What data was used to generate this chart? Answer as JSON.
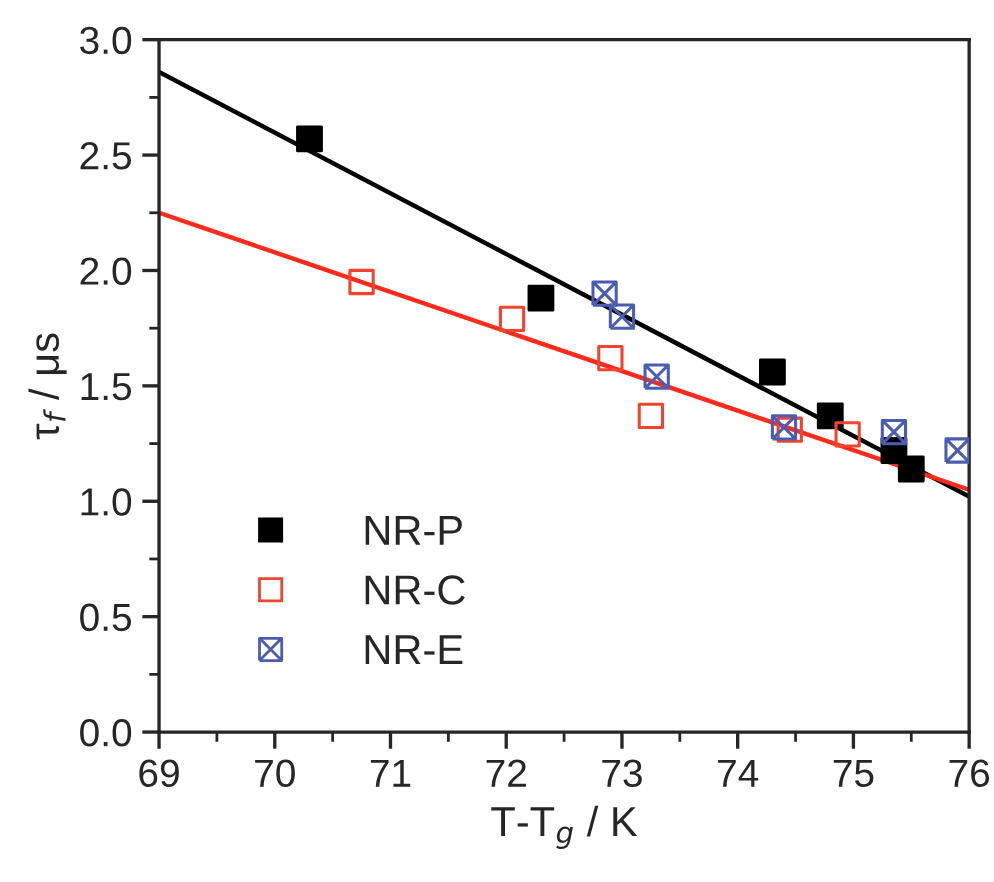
{
  "chart_data": {
    "type": "scatter",
    "xlabel": "T-T$_{g}$ / K",
    "ylabel": "τ$_{f}$ / μs",
    "xlim": [
      69,
      76
    ],
    "xticks": [
      69,
      70,
      71,
      72,
      73,
      74,
      75,
      76
    ],
    "ylim": [
      0,
      3.0
    ],
    "yticks": [
      {
        "value": 0,
        "label": "0.0"
      },
      0.5,
      {
        "value": 1,
        "label": "1.0"
      },
      1.5,
      {
        "value": 2,
        "label": "2.0"
      },
      2.5,
      {
        "value": 3,
        "label": "3.0"
      }
    ],
    "grid": false,
    "legend": "bottom left",
    "marker": "square",
    "series": [
      {
        "name": "NR-P",
        "color": "#000000",
        "x": [
          70.3,
          72.3,
          74.3,
          74.8,
          75.35,
          75.5
        ],
        "values": [
          2.57,
          1.88,
          1.56,
          1.37,
          1.22,
          1.14
        ]
      },
      {
        "name": "NR-C",
        "color": "#f0442f",
        "x": [
          70.75,
          72.05,
          72.9,
          73.25,
          74.45,
          74.95
        ],
        "values": [
          1.95,
          1.79,
          1.62,
          1.37,
          1.31,
          1.29
        ]
      },
      {
        "name": "NR-E",
        "color": "#4b5cb3",
        "marker": "cross",
        "x": [
          72.85,
          73.0,
          73.3,
          74.4,
          75.35,
          75.9
        ],
        "values": [
          1.9,
          1.8,
          1.54,
          1.32,
          1.3,
          1.22
        ]
      },
      {
        "type": "line",
        "marker": "none",
        "color": "#000000",
        "x": [
          69,
          76
        ],
        "values": [
          2.86,
          1.02
        ]
      },
      {
        "type": "line",
        "marker": "none",
        "color": "#ff2a1a",
        "x": [
          69,
          76
        ],
        "values": [
          2.25,
          1.05
        ]
      }
    ]
  }
}
